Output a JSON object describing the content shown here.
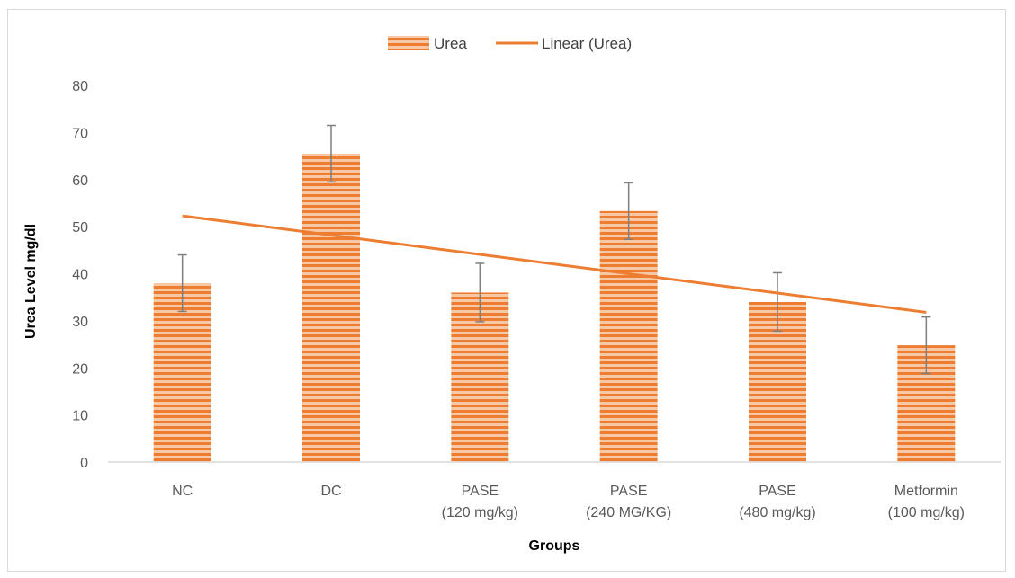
{
  "chart_data": {
    "type": "bar",
    "categories": [
      [
        "NC"
      ],
      [
        "DC"
      ],
      [
        "PASE",
        "(120 mg/kg)"
      ],
      [
        "PASE",
        "(240 MG/KG)"
      ],
      [
        "PASE",
        "(480 mg/kg)"
      ],
      [
        "Metformin",
        "(100 mg/kg)"
      ]
    ],
    "series": [
      {
        "name": "Urea",
        "values": [
          38,
          65.5,
          36,
          53.3,
          34,
          24.8
        ],
        "error": [
          6,
          6,
          6.2,
          6,
          6.2,
          6
        ],
        "color": "#ed7d31"
      }
    ],
    "trendline": {
      "name": "Linear (Urea)",
      "start": 52.3,
      "end": 31.8,
      "color": "#ed7d31"
    },
    "xlabel": "Groups",
    "ylabel": "Urea Level mg/dl",
    "ylim": [
      0,
      80
    ],
    "yticks": [
      "0",
      "10",
      "20",
      "30",
      "40",
      "50",
      "60",
      "70",
      "80"
    ],
    "grid": false,
    "legend": "top-center"
  }
}
